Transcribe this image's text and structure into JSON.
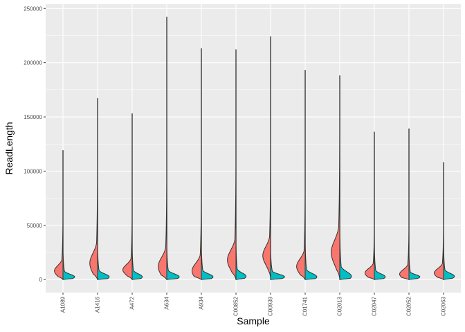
{
  "chart_data": {
    "type": "violin",
    "xlabel": "Sample",
    "ylabel": "ReadLength",
    "categories": [
      "A1089",
      "A1416",
      "A472",
      "A634",
      "A934",
      "C00852",
      "C00939",
      "C01741",
      "C02013",
      "C02047",
      "C02052",
      "C02063"
    ],
    "yticks": [
      0,
      50000,
      100000,
      150000,
      200000,
      250000
    ],
    "ytick_labels": [
      "0",
      "50000",
      "100000",
      "150000",
      "200000",
      "250000"
    ],
    "ylim": [
      -12000,
      254000
    ],
    "split": true,
    "grid": true,
    "legend": "none",
    "colors": {
      "left": "#F8766D",
      "right": "#00BFC4",
      "panel": "#EBEBEB",
      "grid": "#FFFFFF",
      "outline": "#333333"
    },
    "samples": [
      {
        "name": "A1089",
        "max": 119000,
        "left": {
          "peak": 8000,
          "spread": 7000,
          "width": 0.55
        },
        "right": {
          "peak": 2500,
          "spread": 3500,
          "width": 0.75
        }
      },
      {
        "name": "A1416",
        "max": 167000,
        "left": {
          "peak": 15000,
          "spread": 13000,
          "width": 0.5
        },
        "right": {
          "peak": 2500,
          "spread": 4000,
          "width": 0.75
        }
      },
      {
        "name": "A472",
        "max": 153000,
        "left": {
          "peak": 9000,
          "spread": 7000,
          "width": 0.6
        },
        "right": {
          "peak": 2500,
          "spread": 4000,
          "width": 0.65
        }
      },
      {
        "name": "A634",
        "max": 242000,
        "left": {
          "peak": 12000,
          "spread": 12000,
          "width": 0.55
        },
        "right": {
          "peak": 2500,
          "spread": 4000,
          "width": 0.8
        }
      },
      {
        "name": "A934",
        "max": 213000,
        "left": {
          "peak": 8000,
          "spread": 10000,
          "width": 0.6
        },
        "right": {
          "peak": 2500,
          "spread": 4000,
          "width": 0.75
        }
      },
      {
        "name": "C00852",
        "max": 212000,
        "left": {
          "peak": 18000,
          "spread": 13000,
          "width": 0.55
        },
        "right": {
          "peak": 3000,
          "spread": 4500,
          "width": 0.65
        }
      },
      {
        "name": "C00939",
        "max": 224000,
        "left": {
          "peak": 22000,
          "spread": 12000,
          "width": 0.5
        },
        "right": {
          "peak": 2500,
          "spread": 3500,
          "width": 0.9
        }
      },
      {
        "name": "C01741",
        "max": 193000,
        "left": {
          "peak": 12000,
          "spread": 10000,
          "width": 0.55
        },
        "right": {
          "peak": 2500,
          "spread": 4500,
          "width": 0.75
        }
      },
      {
        "name": "C02013",
        "max": 188000,
        "left": {
          "peak": 25000,
          "spread": 16000,
          "width": 0.55
        },
        "right": {
          "peak": 3000,
          "spread": 6000,
          "width": 0.75
        }
      },
      {
        "name": "C02047",
        "max": 136000,
        "left": {
          "peak": 6000,
          "spread": 6000,
          "width": 0.6
        },
        "right": {
          "peak": 2500,
          "spread": 4000,
          "width": 0.7
        }
      },
      {
        "name": "C02052",
        "max": 139000,
        "left": {
          "peak": 5000,
          "spread": 6000,
          "width": 0.6
        },
        "right": {
          "peak": 2500,
          "spread": 3000,
          "width": 0.7
        }
      },
      {
        "name": "C02063",
        "max": 108000,
        "left": {
          "peak": 6000,
          "spread": 6000,
          "width": 0.6
        },
        "right": {
          "peak": 3000,
          "spread": 4000,
          "width": 0.7
        }
      }
    ]
  }
}
